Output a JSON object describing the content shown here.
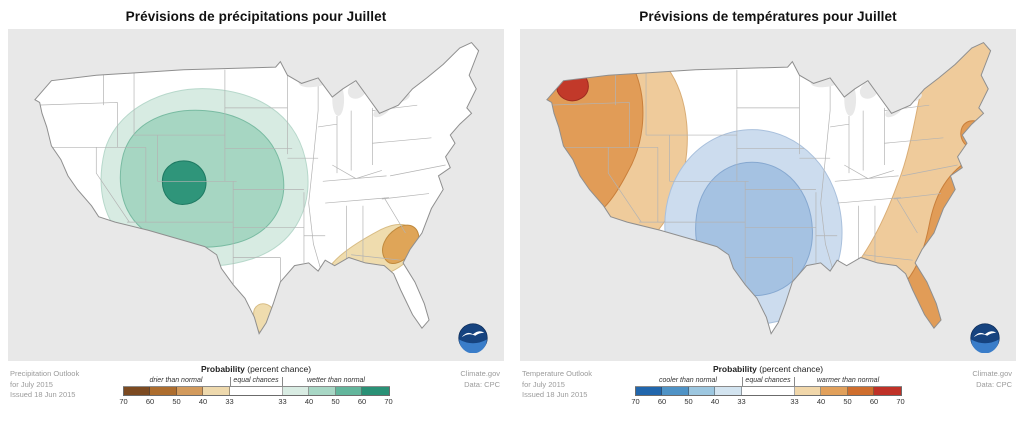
{
  "panels": [
    {
      "title": "Prévisions de précipitations pour Juillet",
      "outlook": [
        "Precipitation Outlook",
        "for July 2015",
        "Issued 18 Jun 2015"
      ],
      "source": [
        "Climate.gov",
        "Data: CPC"
      ],
      "legend": {
        "title_bold": "Probability",
        "title_rest": " (percent chance)",
        "labels": [
          "drier than normal",
          "equal chances",
          "wetter than normal"
        ],
        "ticks": [
          "70",
          "60",
          "50",
          "40",
          "33",
          "33",
          "40",
          "50",
          "60",
          "70"
        ],
        "segment_colors": [
          "#7c4a21",
          "#ad6d2e",
          "#d29a5c",
          "#eed9ad",
          "#ffffff",
          "#d9ece3",
          "#a8d7c5",
          "#63b69c",
          "#2a9176"
        ]
      },
      "map_colors": {
        "wet_outer": "#d7ebe2",
        "wet_mid": "#a6d6c2",
        "wet_core": "#2f957a",
        "dry_outer": "#efdcae",
        "dry_core": "#dfa558"
      },
      "regions": [
        {
          "category": "wetter than normal",
          "location": "central and western US from the Great Basin across the Rockies into the Plains",
          "peak_probability": "50-60%"
        },
        {
          "category": "drier than normal",
          "location": "Gulf Coast and Southeast from Louisiana to the Carolinas",
          "peak_probability": "40-50%"
        },
        {
          "category": "drier than normal",
          "location": "southern tip of Texas",
          "peak_probability": "33-40%"
        }
      ]
    },
    {
      "title": "Prévisions de températures pour Juillet",
      "outlook": [
        "Temperature Outlook",
        "for July 2015",
        "Issued 18 Jun 2015"
      ],
      "source": [
        "Climate.gov",
        "Data: CPC"
      ],
      "legend": {
        "title_bold": "Probability",
        "title_rest": " (percent chance)",
        "labels": [
          "cooler than normal",
          "equal chances",
          "warmer than normal"
        ],
        "ticks": [
          "70",
          "60",
          "50",
          "40",
          "33",
          "33",
          "40",
          "50",
          "60",
          "70"
        ],
        "segment_colors": [
          "#2166ac",
          "#4f93c6",
          "#9dc7e0",
          "#d3e4f0",
          "#ffffff",
          "#f1d7aa",
          "#e1a05b",
          "#cf6e2e",
          "#bf3127"
        ]
      },
      "map_colors": {
        "warm_outer": "#efcb9b",
        "warm_mid": "#e19c57",
        "warm_core": "#c2392a",
        "cool_outer": "#ccdcee",
        "cool_mid": "#a5c2e2"
      },
      "regions": [
        {
          "category": "warmer than normal",
          "location": "West Coast and Northwest: Washington, Oregon, California, Nevada, Idaho",
          "peak_probability": "60-70%"
        },
        {
          "category": "cooler than normal",
          "location": "central Plains: Colorado, Kansas, Nebraska, Oklahoma, Dakotas, Texas panhandle",
          "peak_probability": "40-50%"
        },
        {
          "category": "warmer than normal",
          "location": "East Coast from New England to Florida and the eastern Gulf Coast",
          "peak_probability": "50-60%"
        }
      ]
    }
  ],
  "icons": {
    "noaa": "noaa-emblem"
  }
}
